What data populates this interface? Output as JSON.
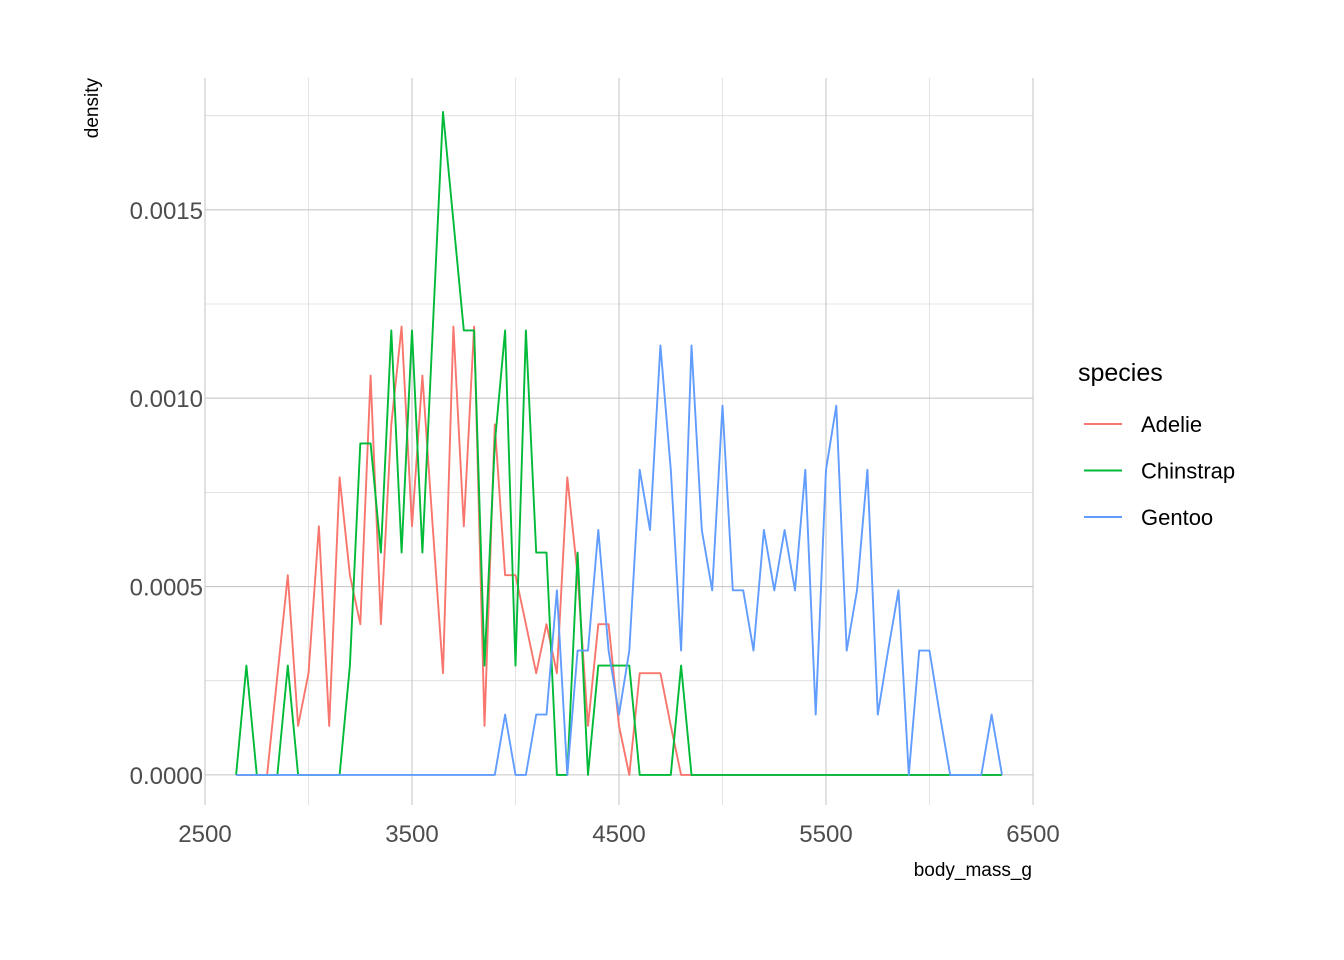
{
  "chart_data": {
    "type": "line",
    "xlabel": "body_mass_g",
    "ylabel": "density",
    "xlim": [
      2500,
      6500
    ],
    "ylim": [
      -8e-05,
      0.00185
    ],
    "x_ticks": [
      2500,
      3500,
      4500,
      5500,
      6500
    ],
    "x_tick_labels": [
      "2500",
      "3500",
      "4500",
      "5500",
      "6500"
    ],
    "y_ticks": [
      0,
      0.0005,
      0.001,
      0.0015
    ],
    "y_tick_labels": [
      "0.0000",
      "0.0005",
      "0.0010",
      "0.0015"
    ],
    "grid": true,
    "legend": {
      "title": "species",
      "position": "right"
    },
    "series": [
      {
        "name": "Adelie",
        "color": "#F8766D",
        "points": [
          [
            2650,
            0
          ],
          [
            2800,
            0
          ],
          [
            2900,
            0.00053
          ],
          [
            2950,
            0.00013
          ],
          [
            3000,
            0.00027
          ],
          [
            3050,
            0.00066
          ],
          [
            3100,
            0.00013
          ],
          [
            3150,
            0.00079
          ],
          [
            3200,
            0.00053
          ],
          [
            3250,
            0.0004
          ],
          [
            3300,
            0.00106
          ],
          [
            3350,
            0.0004
          ],
          [
            3400,
            0.00093
          ],
          [
            3450,
            0.00119
          ],
          [
            3500,
            0.00066
          ],
          [
            3550,
            0.00106
          ],
          [
            3600,
            0.00066
          ],
          [
            3650,
            0.00027
          ],
          [
            3700,
            0.00119
          ],
          [
            3750,
            0.00066
          ],
          [
            3800,
            0.00119
          ],
          [
            3850,
            0.00013
          ],
          [
            3900,
            0.00093
          ],
          [
            3950,
            0.00053
          ],
          [
            4000,
            0.00053
          ],
          [
            4050,
            0.0004
          ],
          [
            4100,
            0.00027
          ],
          [
            4150,
            0.0004
          ],
          [
            4200,
            0.00027
          ],
          [
            4250,
            0.00079
          ],
          [
            4300,
            0.00053
          ],
          [
            4350,
            0.00013
          ],
          [
            4400,
            0.0004
          ],
          [
            4450,
            0.0004
          ],
          [
            4500,
            0.00013
          ],
          [
            4550,
            0
          ],
          [
            4600,
            0.00027
          ],
          [
            4650,
            0.00027
          ],
          [
            4700,
            0.00027
          ],
          [
            4750,
            0.00013
          ],
          [
            4800,
            0
          ],
          [
            6350,
            0
          ]
        ]
      },
      {
        "name": "Chinstrap",
        "color": "#00BA38",
        "points": [
          [
            2650,
            0
          ],
          [
            2700,
            0.00029
          ],
          [
            2750,
            0
          ],
          [
            2850,
            0
          ],
          [
            2900,
            0.00029
          ],
          [
            2950,
            0
          ],
          [
            3150,
            0
          ],
          [
            3200,
            0.00029
          ],
          [
            3250,
            0.00088
          ],
          [
            3300,
            0.00088
          ],
          [
            3350,
            0.00059
          ],
          [
            3400,
            0.00118
          ],
          [
            3450,
            0.00059
          ],
          [
            3500,
            0.00118
          ],
          [
            3550,
            0.00059
          ],
          [
            3600,
            0.00118
          ],
          [
            3650,
            0.00176
          ],
          [
            3700,
            0.00147
          ],
          [
            3750,
            0.00118
          ],
          [
            3800,
            0.00118
          ],
          [
            3850,
            0.00029
          ],
          [
            3900,
            0.00088
          ],
          [
            3950,
            0.00118
          ],
          [
            4000,
            0.00029
          ],
          [
            4050,
            0.00118
          ],
          [
            4100,
            0.00059
          ],
          [
            4150,
            0.00059
          ],
          [
            4200,
            0
          ],
          [
            4250,
            0
          ],
          [
            4300,
            0.00059
          ],
          [
            4350,
            0
          ],
          [
            4400,
            0.00029
          ],
          [
            4450,
            0.00029
          ],
          [
            4500,
            0.00029
          ],
          [
            4550,
            0.00029
          ],
          [
            4600,
            0
          ],
          [
            4750,
            0
          ],
          [
            4800,
            0.00029
          ],
          [
            4850,
            0
          ],
          [
            6350,
            0
          ]
        ]
      },
      {
        "name": "Gentoo",
        "color": "#619CFF",
        "points": [
          [
            2650,
            0
          ],
          [
            3900,
            0
          ],
          [
            3950,
            0.00016
          ],
          [
            4000,
            0
          ],
          [
            4050,
            0
          ],
          [
            4100,
            0.00016
          ],
          [
            4150,
            0.00016
          ],
          [
            4200,
            0.00049
          ],
          [
            4250,
            0
          ],
          [
            4300,
            0.00033
          ],
          [
            4350,
            0.00033
          ],
          [
            4400,
            0.00065
          ],
          [
            4450,
            0.00033
          ],
          [
            4500,
            0.00016
          ],
          [
            4550,
            0.00033
          ],
          [
            4600,
            0.00081
          ],
          [
            4650,
            0.00065
          ],
          [
            4700,
            0.00114
          ],
          [
            4750,
            0.00081
          ],
          [
            4800,
            0.00033
          ],
          [
            4850,
            0.00114
          ],
          [
            4900,
            0.00065
          ],
          [
            4950,
            0.00049
          ],
          [
            5000,
            0.00098
          ],
          [
            5050,
            0.00049
          ],
          [
            5100,
            0.00049
          ],
          [
            5150,
            0.00033
          ],
          [
            5200,
            0.00065
          ],
          [
            5250,
            0.00049
          ],
          [
            5300,
            0.00065
          ],
          [
            5350,
            0.00049
          ],
          [
            5400,
            0.00081
          ],
          [
            5450,
            0.00016
          ],
          [
            5500,
            0.00081
          ],
          [
            5550,
            0.00098
          ],
          [
            5600,
            0.00033
          ],
          [
            5650,
            0.00049
          ],
          [
            5700,
            0.00081
          ],
          [
            5750,
            0.00016
          ],
          [
            5800,
            0.00033
          ],
          [
            5850,
            0.00049
          ],
          [
            5900,
            0
          ],
          [
            5950,
            0.00033
          ],
          [
            6000,
            0.00033
          ],
          [
            6050,
            0.00016
          ],
          [
            6100,
            0
          ],
          [
            6250,
            0
          ],
          [
            6300,
            0.00016
          ],
          [
            6350,
            0
          ]
        ]
      }
    ]
  }
}
